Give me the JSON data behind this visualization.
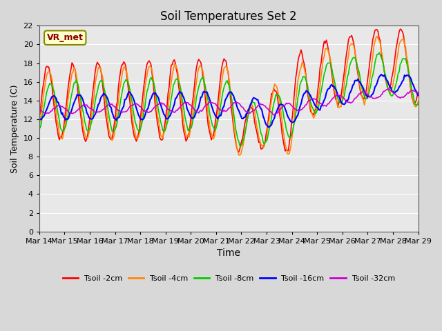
{
  "title": "Soil Temperatures Set 2",
  "xlabel": "Time",
  "ylabel": "Soil Temperature (C)",
  "ylim": [
    0,
    22
  ],
  "yticks": [
    0,
    2,
    4,
    6,
    8,
    10,
    12,
    14,
    16,
    18,
    20,
    22
  ],
  "annotation_text": "VR_met",
  "annotation_bg": "#ffffcc",
  "annotation_border": "#888800",
  "series_colors": [
    "#ff0000",
    "#ff8800",
    "#00cc00",
    "#0000ff",
    "#cc00cc"
  ],
  "series_labels": [
    "Tsoil -2cm",
    "Tsoil -4cm",
    "Tsoil -8cm",
    "Tsoil -16cm",
    "Tsoil -32cm"
  ],
  "x_tick_labels": [
    "Mar 14",
    "Mar 15",
    "Mar 16",
    "Mar 17",
    "Mar 18",
    "Mar 19",
    "Mar 20",
    "Mar 21",
    "Mar 22",
    "Mar 23",
    "Mar 24",
    "Mar 25",
    "Mar 26",
    "Mar 27",
    "Mar 28",
    "Mar 29"
  ],
  "n_days": 15,
  "points_per_day": 24
}
